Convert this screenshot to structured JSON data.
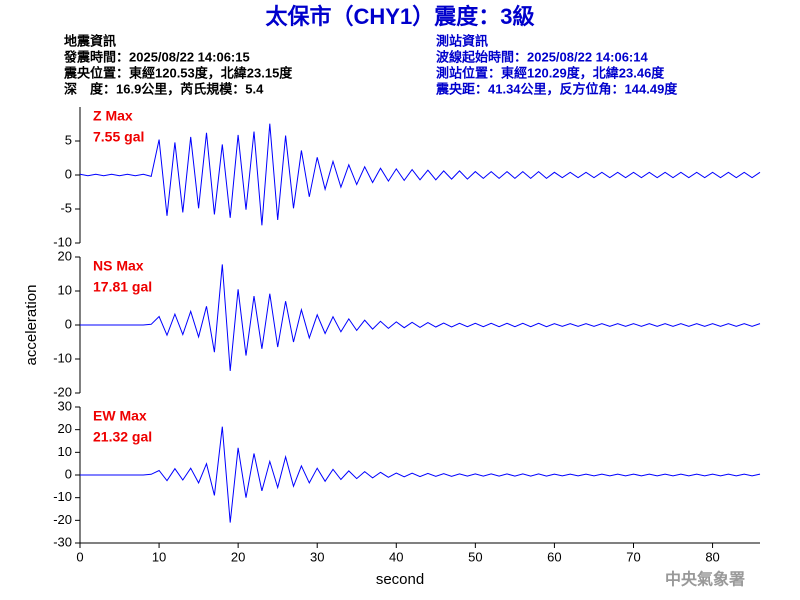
{
  "header": {
    "title": "太保市（CHY1）震度：3級",
    "left": [
      "地震資訊",
      "發震時間：2025/08/22 14:06:15",
      "震央位置：東經120.53度，北緯23.15度",
      "深　度：16.9公里，芮氏規模：5.4"
    ],
    "right": [
      "測站資訊",
      "波線起始時間：2025/08/22 14:06:14",
      "測站位置：東經120.29度，北緯23.46度",
      "震央距：41.34公里，反方位角：144.49度"
    ]
  },
  "footer": "中央氣象署",
  "chart_data": [
    {
      "type": "line",
      "annotation": [
        "Z Max",
        "7.55 gal"
      ],
      "xlim": [
        0,
        86
      ],
      "ylim": [
        -10,
        10
      ],
      "yticks": [
        -10,
        -5,
        0,
        5
      ],
      "x": [
        0,
        1,
        2,
        3,
        4,
        5,
        6,
        7,
        8,
        9,
        10,
        11,
        12,
        13,
        14,
        15,
        16,
        17,
        18,
        19,
        20,
        21,
        22,
        23,
        24,
        25,
        26,
        27,
        28,
        29,
        30,
        31,
        32,
        33,
        34,
        35,
        36,
        37,
        38,
        39,
        40,
        41,
        42,
        43,
        44,
        45,
        46,
        47,
        48,
        49,
        50,
        51,
        52,
        53,
        54,
        55,
        56,
        57,
        58,
        59,
        60,
        61,
        62,
        63,
        64,
        65,
        66,
        67,
        68,
        69,
        70,
        71,
        72,
        73,
        74,
        75,
        76,
        77,
        78,
        79,
        80,
        81,
        82,
        83,
        84,
        85,
        86
      ],
      "series": [
        {
          "color": "#0000ff",
          "values": [
            0.1,
            -0.1,
            0.1,
            -0.1,
            0.1,
            -0.1,
            0.1,
            -0.1,
            0.1,
            -0.2,
            5.2,
            -6.0,
            4.8,
            -5.5,
            5.6,
            -4.9,
            6.2,
            -5.8,
            4.5,
            -6.3,
            5.9,
            -5.1,
            6.4,
            -7.4,
            7.55,
            -6.6,
            5.8,
            -4.9,
            3.6,
            -3.2,
            2.6,
            -2.1,
            2.0,
            -1.8,
            1.5,
            -1.4,
            1.2,
            -1.1,
            1.0,
            -0.9,
            0.9,
            -0.8,
            0.8,
            -0.7,
            0.7,
            -0.7,
            0.6,
            -0.6,
            0.6,
            -0.6,
            0.5,
            -0.5,
            0.5,
            -0.5,
            0.5,
            -0.5,
            0.5,
            -0.5,
            0.5,
            -0.5,
            0.4,
            -0.4,
            0.4,
            -0.4,
            0.4,
            -0.4,
            0.4,
            -0.4,
            0.4,
            -0.4,
            0.4,
            -0.4,
            0.4,
            -0.4,
            0.4,
            -0.4,
            0.4,
            -0.4,
            0.4,
            -0.4,
            0.4,
            -0.4,
            0.4,
            -0.4,
            0.4,
            -0.4,
            0.4
          ]
        }
      ]
    },
    {
      "type": "line",
      "annotation": [
        "NS Max",
        "17.81 gal"
      ],
      "y_label": "acceleration",
      "xlim": [
        0,
        86
      ],
      "ylim": [
        -20,
        20
      ],
      "yticks": [
        -20,
        -10,
        0,
        10,
        20
      ],
      "x": [
        0,
        1,
        2,
        3,
        4,
        5,
        6,
        7,
        8,
        9,
        10,
        11,
        12,
        13,
        14,
        15,
        16,
        17,
        18,
        19,
        20,
        21,
        22,
        23,
        24,
        25,
        26,
        27,
        28,
        29,
        30,
        31,
        32,
        33,
        34,
        35,
        36,
        37,
        38,
        39,
        40,
        41,
        42,
        43,
        44,
        45,
        46,
        47,
        48,
        49,
        50,
        51,
        52,
        53,
        54,
        55,
        56,
        57,
        58,
        59,
        60,
        61,
        62,
        63,
        64,
        65,
        66,
        67,
        68,
        69,
        70,
        71,
        72,
        73,
        74,
        75,
        76,
        77,
        78,
        79,
        80,
        81,
        82,
        83,
        84,
        85,
        86
      ],
      "series": [
        {
          "color": "#0000ff",
          "values": [
            0,
            0,
            0,
            0,
            0,
            0,
            0,
            0,
            0,
            0.2,
            2.5,
            -3.0,
            3.2,
            -2.8,
            4.0,
            -3.5,
            5.5,
            -8.0,
            17.81,
            -13.5,
            10.5,
            -9.0,
            8.5,
            -7.0,
            9.2,
            -6.5,
            7.0,
            -5.0,
            4.5,
            -3.8,
            3.0,
            -2.5,
            2.4,
            -2.0,
            1.8,
            -1.6,
            1.4,
            -1.2,
            1.1,
            -1.0,
            0.9,
            -0.8,
            0.8,
            -0.7,
            0.7,
            -0.6,
            0.6,
            -0.6,
            0.5,
            -0.5,
            0.5,
            -0.5,
            0.5,
            -0.5,
            0.5,
            -0.5,
            0.5,
            -0.5,
            0.5,
            -0.5,
            0.4,
            -0.4,
            0.4,
            -0.4,
            0.4,
            -0.4,
            0.4,
            -0.4,
            0.4,
            -0.4,
            0.4,
            -0.4,
            0.4,
            -0.4,
            0.4,
            -0.4,
            0.4,
            -0.4,
            0.4,
            -0.4,
            0.4,
            -0.4,
            0.4,
            -0.4,
            0.4,
            -0.4,
            0.4
          ]
        }
      ]
    },
    {
      "type": "line",
      "annotation": [
        "EW Max",
        "21.32 gal"
      ],
      "x_label": "second",
      "xlim": [
        0,
        86
      ],
      "ylim": [
        -30,
        30
      ],
      "yticks": [
        -30,
        -20,
        -10,
        0,
        10,
        20,
        30
      ],
      "xticks": [
        0,
        10,
        20,
        30,
        40,
        50,
        60,
        70,
        80
      ],
      "x": [
        0,
        1,
        2,
        3,
        4,
        5,
        6,
        7,
        8,
        9,
        10,
        11,
        12,
        13,
        14,
        15,
        16,
        17,
        18,
        19,
        20,
        21,
        22,
        23,
        24,
        25,
        26,
        27,
        28,
        29,
        30,
        31,
        32,
        33,
        34,
        35,
        36,
        37,
        38,
        39,
        40,
        41,
        42,
        43,
        44,
        45,
        46,
        47,
        48,
        49,
        50,
        51,
        52,
        53,
        54,
        55,
        56,
        57,
        58,
        59,
        60,
        61,
        62,
        63,
        64,
        65,
        66,
        67,
        68,
        69,
        70,
        71,
        72,
        73,
        74,
        75,
        76,
        77,
        78,
        79,
        80,
        81,
        82,
        83,
        84,
        85,
        86
      ],
      "series": [
        {
          "color": "#0000ff",
          "values": [
            0,
            0,
            0,
            0,
            0,
            0,
            0,
            0,
            0,
            0.3,
            2.0,
            -2.5,
            2.8,
            -2.2,
            3.0,
            -3.5,
            5.0,
            -9.0,
            21.32,
            -21.0,
            12.0,
            -10.0,
            9.5,
            -7.0,
            6.0,
            -5.5,
            8.0,
            -5.0,
            4.0,
            -3.5,
            3.0,
            -2.8,
            2.5,
            -2.0,
            1.8,
            -1.6,
            1.5,
            -1.3,
            1.2,
            -1.0,
            0.9,
            -0.8,
            0.8,
            -0.7,
            0.7,
            -0.6,
            0.6,
            -0.6,
            0.5,
            -0.5,
            0.5,
            -0.5,
            0.5,
            -0.5,
            0.5,
            -0.5,
            0.5,
            -0.5,
            0.5,
            -0.5,
            0.4,
            -0.4,
            0.4,
            -0.4,
            0.4,
            -0.4,
            0.4,
            -0.4,
            0.4,
            -0.4,
            0.4,
            -0.4,
            0.4,
            -0.4,
            0.4,
            -0.4,
            0.4,
            -0.4,
            0.4,
            -0.4,
            0.4,
            -0.4,
            0.4,
            -0.4,
            0.4,
            -0.4,
            0.4
          ]
        }
      ]
    }
  ]
}
